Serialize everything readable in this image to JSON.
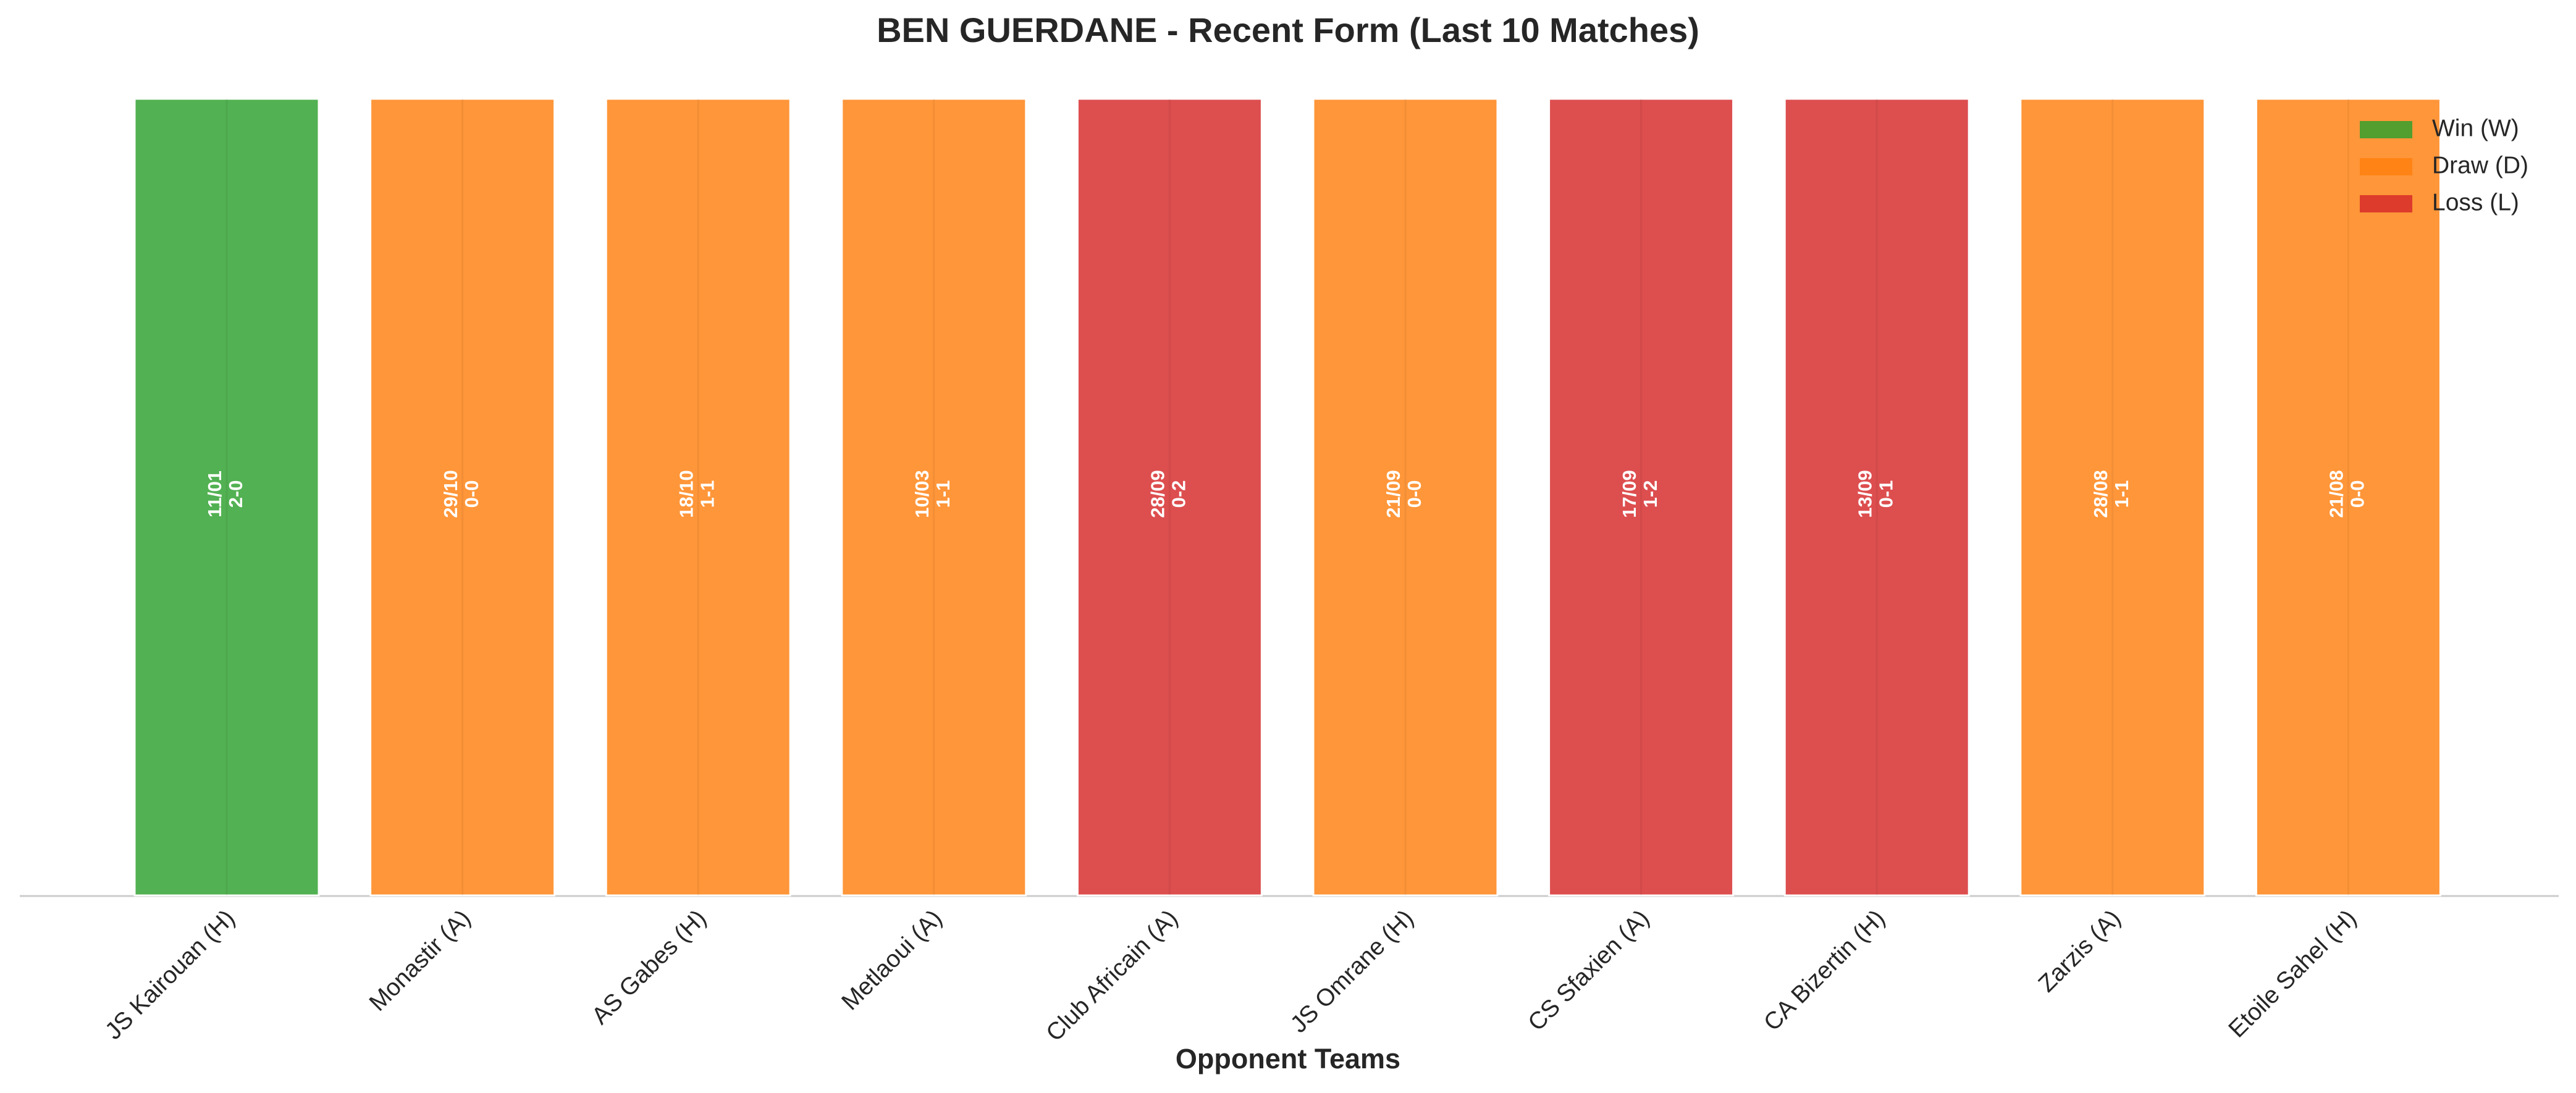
{
  "chart_data": {
    "type": "bar",
    "title": "BEN GUERDANE - Recent Form (Last 10 Matches)",
    "xlabel": "Opponent Teams",
    "categories": [
      "JS Kairouan (H)",
      "Monastir (A)",
      "AS Gabes (H)",
      "Metlaoui (A)",
      "Club Africain (A)",
      "JS Omrane (H)",
      "CS Sfaxien (A)",
      "CA Bizertin (H)",
      "Zarzis (A)",
      "Etoile Sahel (H)"
    ],
    "values": [
      1,
      1,
      1,
      1,
      1,
      1,
      1,
      1,
      1,
      1
    ],
    "dates": [
      "11/01",
      "29/10",
      "18/10",
      "10/03",
      "28/09",
      "21/09",
      "17/09",
      "13/09",
      "28/08",
      "21/08"
    ],
    "scores": [
      "2-0",
      "0-0",
      "1-1",
      "1-1",
      "0-2",
      "0-0",
      "1-2",
      "0-1",
      "1-1",
      "0-0"
    ],
    "colors": [
      "#2ca02c",
      "#ff7f0e",
      "#ff7f0e",
      "#ff7f0e",
      "#d62728",
      "#ff7f0e",
      "#d62728",
      "#d62728",
      "#ff7f0e",
      "#ff7f0e"
    ],
    "ylim": [
      0,
      1
    ],
    "legend_position": "upper right",
    "legend": [
      {
        "name": "Win (W)",
        "color": "#2ca02c"
      },
      {
        "name": "Draw (D)",
        "color": "#ff7f0e"
      },
      {
        "name": "Loss (L)",
        "color": "#d62728"
      }
    ]
  }
}
